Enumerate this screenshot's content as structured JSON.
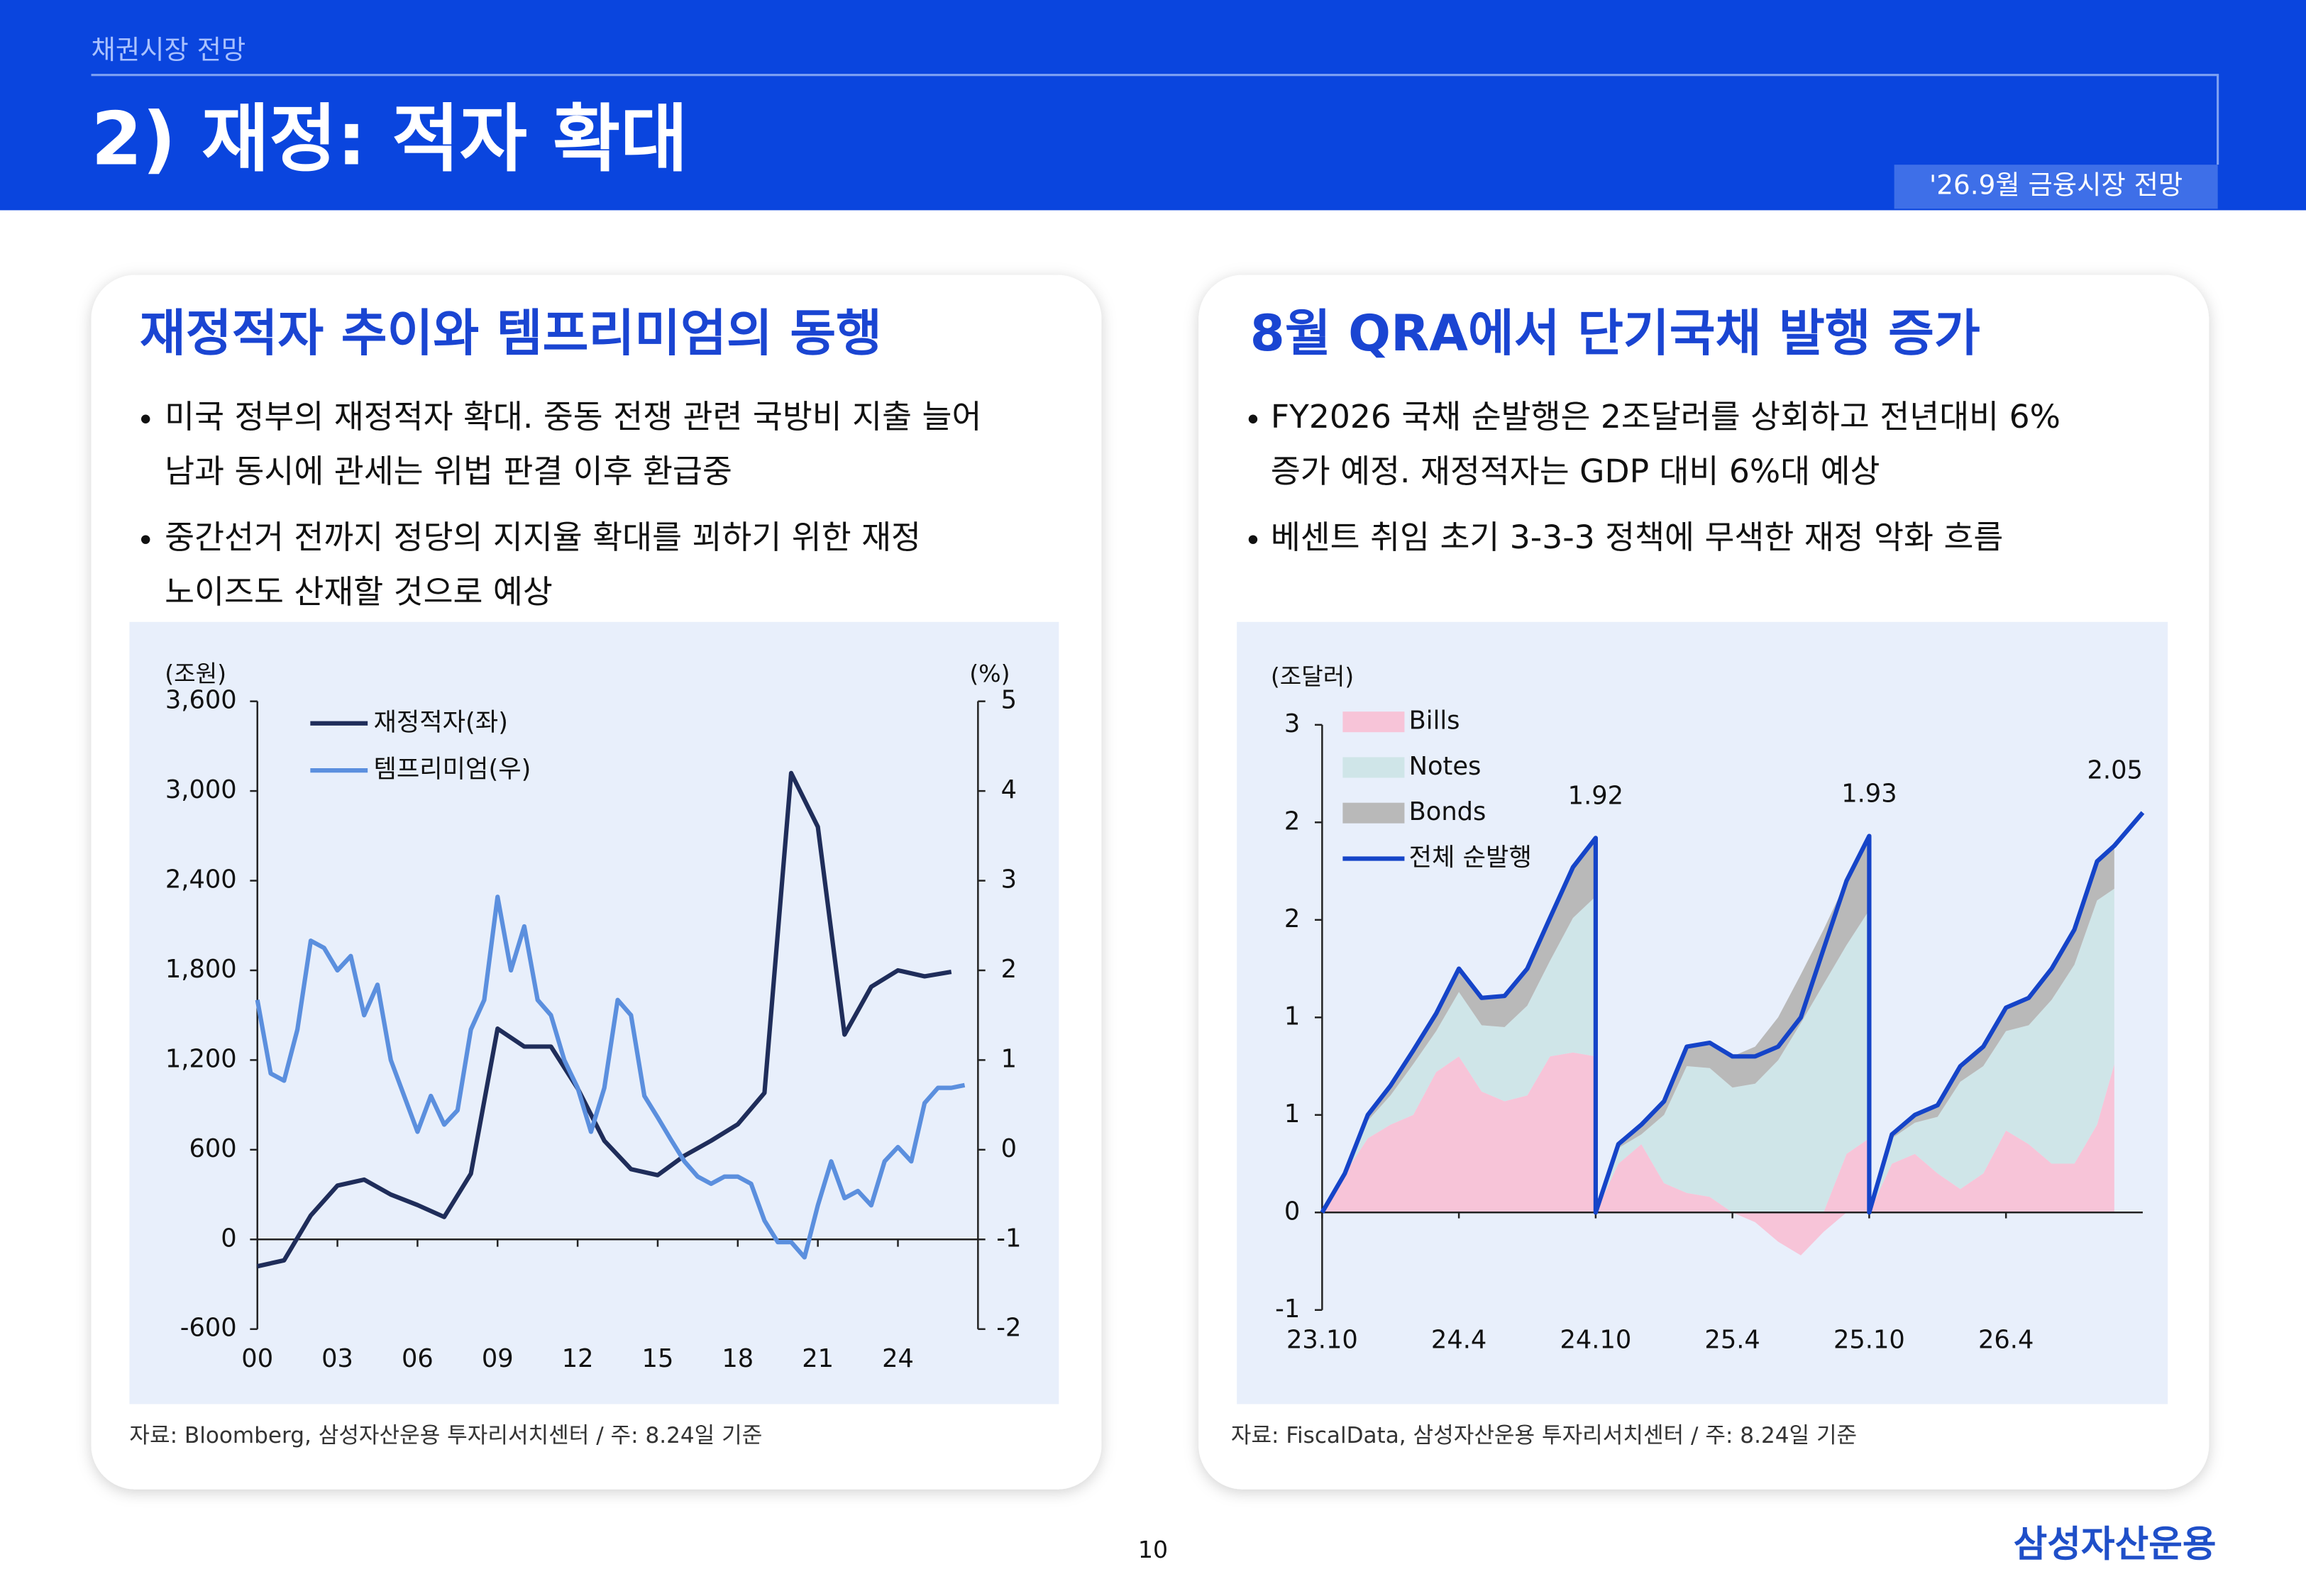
{
  "header": {
    "section": "채권시장 전망",
    "title": "2) 재정: 적자 확대",
    "tag": "'26.9월 금융시장 전망"
  },
  "panels": [
    {
      "title": "재정적자 추이와 템프리미엄의 동행",
      "bullets": [
        [
          "미국 정부의 재정적자 확대. 중동 전쟁 관련 국방비 지출 늘어",
          "남과 동시에 관세는 위법 판결 이후 환급중"
        ],
        [
          "중간선거 전까지 정당의 지지율 확대를 꾀하기 위한 재정",
          "노이즈도 산재할 것으로 예상"
        ]
      ],
      "source": "자료: Bloomberg, 삼성자산운용 투자리서치센터 / 주: 8.24일 기준"
    },
    {
      "title": "8월 QRA에서 단기국채 발행 증가",
      "bullets": [
        [
          "FY2026 국채 순발행은 2조달러를 상회하고 전년대비 6%",
          "증가 예정. 재정적자는 GDP 대비 6%대 예상"
        ],
        [
          "베센트 취임 초기 3-3-3 정책에 무색한 재정 악화 흐름"
        ]
      ],
      "source": "자료: FiscalData, 삼성자산운용 투자리서치센터 / 주: 8.24일 기준"
    }
  ],
  "chart_data": [
    {
      "type": "line",
      "y_label": "(조원)",
      "y2_label": "(%)",
      "legend": "upper left",
      "xlim": [
        2000,
        2027
      ],
      "xticks": [
        {
          "value": 2000,
          "label": "00"
        },
        {
          "value": 2003,
          "label": "03"
        },
        {
          "value": 2006,
          "label": "06"
        },
        {
          "value": 2009,
          "label": "09"
        },
        {
          "value": 2012,
          "label": "12"
        },
        {
          "value": 2015,
          "label": "15"
        },
        {
          "value": 2018,
          "label": "18"
        },
        {
          "value": 2021,
          "label": "21"
        },
        {
          "value": 2024,
          "label": "24"
        }
      ],
      "ylim": [
        -600,
        3600
      ],
      "yticks": [
        -600,
        0,
        600,
        {
          "value": 1200,
          "label": "1,200"
        },
        {
          "value": 1800,
          "label": "1,800"
        },
        {
          "value": 2400,
          "label": "2,400"
        },
        {
          "value": 3000,
          "label": "3,000"
        },
        {
          "value": 3600,
          "label": "3,600"
        }
      ],
      "y2lim": [
        -2,
        5
      ],
      "y2ticks": [
        -2,
        -1,
        0,
        1,
        2,
        3,
        4,
        5
      ],
      "series": [
        {
          "name": "재정적자(좌)",
          "color": "#1f2d5a",
          "x": [
            2000,
            2001,
            2002,
            2003,
            2004,
            2005,
            2006,
            2007,
            2008,
            2009,
            2010,
            2011,
            2012,
            2013,
            2014,
            2015,
            2016,
            2017,
            2018,
            2019,
            2020,
            2021,
            2022,
            2023,
            2024,
            2025,
            2026
          ],
          "values": [
            -180,
            -140,
            160,
            360,
            400,
            300,
            230,
            150,
            440,
            1410,
            1290,
            1290,
            1010,
            660,
            470,
            430,
            560,
            660,
            770,
            980,
            3120,
            2760,
            1370,
            1690,
            1800,
            1760,
            1790
          ]
        },
        {
          "name": "템프리미엄(우)",
          "color": "#5b8fde",
          "axis": "y2",
          "x": [
            2000,
            2000.5,
            2001,
            2001.5,
            2002,
            2002.5,
            2003,
            2003.5,
            2004,
            2004.5,
            2005,
            2005.5,
            2006,
            2006.5,
            2007,
            2007.5,
            2008,
            2008.5,
            2009,
            2009.5,
            2010,
            2010.5,
            2011,
            2011.5,
            2012,
            2012.5,
            2013,
            2013.5,
            2014,
            2014.5,
            2015,
            2015.5,
            2016,
            2016.5,
            2017,
            2017.5,
            2018,
            2018.5,
            2019,
            2019.5,
            2020,
            2020.5,
            2021,
            2021.5,
            2022,
            2022.5,
            2023,
            2023.5,
            2024,
            2024.5,
            2025,
            2025.5,
            2026,
            2026.5
          ],
          "values": [
            1.67,
            0.85,
            0.77,
            1.34,
            2.33,
            2.25,
            2.0,
            2.16,
            1.5,
            1.84,
            1.0,
            0.6,
            0.2,
            0.6,
            0.28,
            0.44,
            1.34,
            1.67,
            2.82,
            2.0,
            2.49,
            1.67,
            1.5,
            1.0,
            0.69,
            0.2,
            0.69,
            1.67,
            1.5,
            0.6,
            0.36,
            0.11,
            -0.13,
            -0.3,
            -0.38,
            -0.3,
            -0.3,
            -0.38,
            -0.79,
            -1.03,
            -1.03,
            -1.2,
            -0.62,
            -0.13,
            -0.54,
            -0.46,
            -0.62,
            -0.13,
            0.03,
            -0.13,
            0.52,
            0.69,
            0.69,
            0.72
          ]
        }
      ]
    },
    {
      "type": "stacked_area",
      "y_label": "(조달러)",
      "legend": "upper left",
      "xlim": [
        2023.75,
        2026.75
      ],
      "xticks": [
        {
          "value": 2023.75,
          "label": "23.10"
        },
        {
          "value": 2024.25,
          "label": "24.4"
        },
        {
          "value": 2024.75,
          "label": "24.10"
        },
        {
          "value": 2025.25,
          "label": "25.4"
        },
        {
          "value": 2025.75,
          "label": "25.10"
        },
        {
          "value": 2026.25,
          "label": "26.4"
        }
      ],
      "ylim": [
        -0.5,
        2.5
      ],
      "yticks": [
        {
          "value": -0.5,
          "label": "-1"
        },
        0,
        {
          "value": 0.5,
          "label": "1"
        },
        1,
        {
          "value": 1.5,
          "label": "2"
        },
        2,
        {
          "value": 2.5,
          "label": "3"
        }
      ],
      "x": [
        2023.75,
        2023.833,
        2023.917,
        2024,
        2024.083,
        2024.167,
        2024.25,
        2024.333,
        2024.417,
        2024.5,
        2024.583,
        2024.667,
        2024.75,
        2024.75,
        2024.833,
        2024.917,
        2025,
        2025.083,
        2025.167,
        2025.25,
        2025.333,
        2025.417,
        2025.5,
        2025.583,
        2025.667,
        2025.75,
        2025.75,
        2025.833,
        2025.917,
        2026,
        2026.083,
        2026.167,
        2026.25,
        2026.333,
        2026.417,
        2026.5,
        2026.583,
        2026.646,
        2026.75
      ],
      "series": [
        {
          "name": "Bills",
          "color": "#f7c4d8",
          "values": [
            0,
            0.2,
            0.38,
            0.45,
            0.5,
            0.72,
            0.8,
            0.62,
            0.57,
            0.6,
            0.8,
            0.82,
            0.8,
            0,
            0.25,
            0.35,
            0.15,
            0.1,
            0.08,
            0,
            -0.05,
            -0.15,
            -0.22,
            -0.1,
            0.3,
            0.38,
            0,
            0.25,
            0.3,
            0.2,
            0.12,
            0.2,
            0.42,
            0.35,
            0.25,
            0.25,
            0.45,
            0.76,
            null
          ]
        },
        {
          "name": "Notes",
          "color": "#cfe5e8",
          "values": [
            0,
            0,
            0.09,
            0.15,
            0.26,
            0.21,
            0.33,
            0.34,
            0.38,
            0.46,
            0.49,
            0.69,
            0.82,
            0,
            0.08,
            0.05,
            0.35,
            0.65,
            0.66,
            0.64,
            0.66,
            0.78,
            0.97,
            1.17,
            1.07,
            1.17,
            0,
            0.13,
            0.16,
            0.29,
            0.55,
            0.55,
            0.51,
            0.61,
            0.84,
            1.02,
            1.15,
            0.9,
            null
          ]
        },
        {
          "name": "Bonds",
          "color": "#b9b9b9",
          "values": [
            0,
            0,
            0.03,
            0.05,
            0.07,
            0.09,
            0.12,
            0.14,
            0.16,
            0.19,
            0.22,
            0.26,
            0.3,
            0,
            0.02,
            0.05,
            0.07,
            0.1,
            0.13,
            0.16,
            0.19,
            0.22,
            0.25,
            0.28,
            0.33,
            0.38,
            0,
            0.02,
            0.04,
            0.06,
            0.08,
            0.1,
            0.12,
            0.14,
            0.16,
            0.18,
            0.2,
            0.22,
            null
          ]
        },
        {
          "name": "전체 순발행",
          "type": "line",
          "color": "#1544c8",
          "values": [
            0,
            0.2,
            0.5,
            0.65,
            0.83,
            1.02,
            1.25,
            1.1,
            1.11,
            1.25,
            1.51,
            1.77,
            1.92,
            0,
            0.35,
            0.45,
            0.57,
            0.85,
            0.87,
            0.8,
            0.8,
            0.85,
            1.0,
            1.35,
            1.7,
            1.93,
            0,
            0.4,
            0.5,
            0.55,
            0.75,
            0.85,
            1.05,
            1.1,
            1.25,
            1.45,
            1.8,
            1.88,
            2.05
          ]
        }
      ],
      "annotations": [
        {
          "x": 2024.75,
          "y": 1.92
        },
        {
          "x": 2025.75,
          "y": 1.93
        },
        {
          "x": 2026.75,
          "y": 2.05
        }
      ]
    }
  ],
  "footer": {
    "page": "10",
    "logo": "삼성자산운용"
  }
}
